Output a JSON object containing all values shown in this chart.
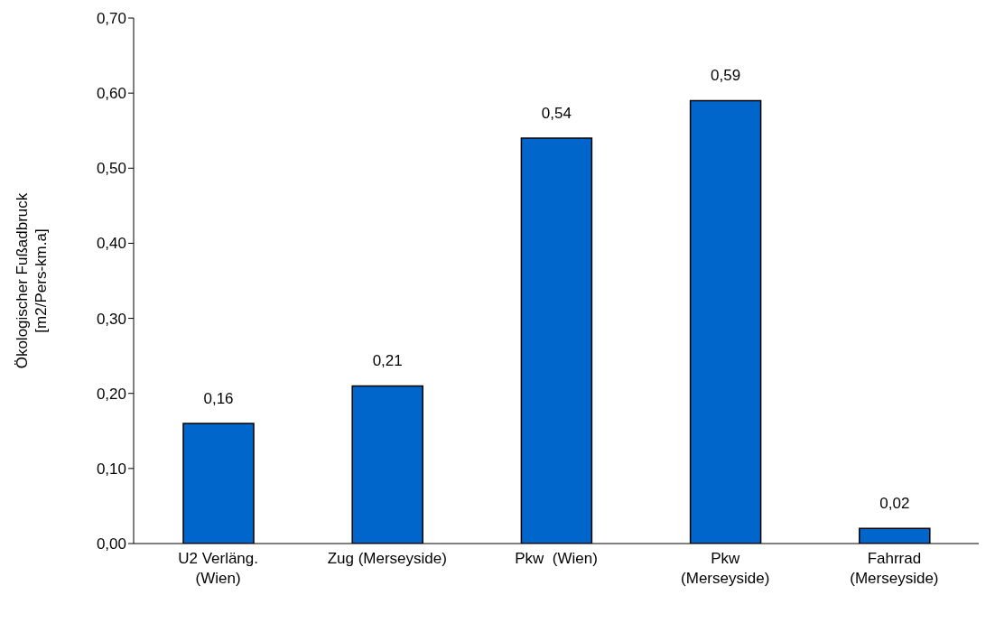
{
  "chart_data": {
    "type": "bar",
    "ylabel": "Ökologischer Fußadbruck\n[m2/Pers-km.a]",
    "categories": [
      "U2 Verläng.\n(Wien)",
      "Zug (Merseyside)",
      "Pkw  (Wien)",
      "Pkw\n(Merseyside)",
      "Fahrrad\n(Merseyside)"
    ],
    "values": [
      0.16,
      0.21,
      0.54,
      0.59,
      0.02
    ],
    "value_labels": [
      "0,16",
      "0,21",
      "0,54",
      "0,59",
      "0,02"
    ],
    "color": "#0066cc",
    "ylim": [
      0,
      0.7
    ],
    "yticks": [
      {
        "value": 0,
        "label": "0,00"
      },
      {
        "value": 0.1,
        "label": "0,10"
      },
      {
        "value": 0.2,
        "label": "0,20"
      },
      {
        "value": 0.3,
        "label": "0,30"
      },
      {
        "value": 0.4,
        "label": "0,40"
      },
      {
        "value": 0.5,
        "label": "0,50"
      },
      {
        "value": 0.6,
        "label": "0,60"
      },
      {
        "value": 0.7,
        "label": "0,70"
      }
    ],
    "grid": false,
    "legend": false
  }
}
